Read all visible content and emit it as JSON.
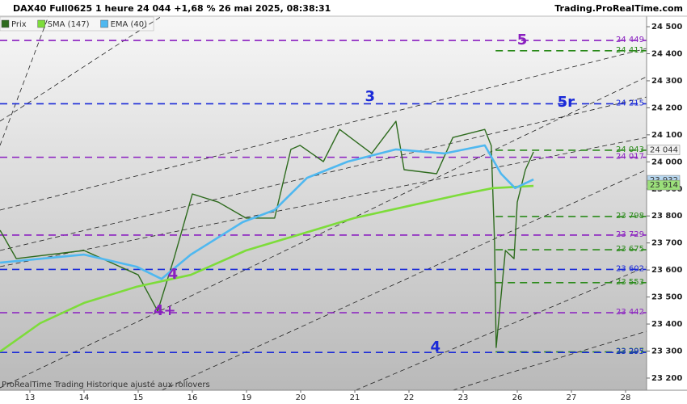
{
  "chart_data": {
    "type": "line",
    "title": "DAX40 Full0625 1 heure 24 044 +1,68 % 26 mai 2025, 08:38:31",
    "source": "Trading.ProRealTime.com",
    "footer": "ProRealTime Trading  Historique ajusté aux rollovers",
    "xlim": [
      -0.552,
      11.388
    ],
    "xticks": [
      {
        "value": 0,
        "label": "13"
      },
      {
        "value": 1,
        "label": "14"
      },
      {
        "value": 2,
        "label": "15"
      },
      {
        "value": 3,
        "label": "16"
      },
      {
        "value": 4,
        "label": "19"
      },
      {
        "value": 5,
        "label": "20"
      },
      {
        "value": 6,
        "label": "21"
      },
      {
        "value": 7,
        "label": "22"
      },
      {
        "value": 8,
        "label": "23"
      },
      {
        "value": 9,
        "label": "26"
      },
      {
        "value": 10,
        "label": "27"
      },
      {
        "value": 11,
        "label": "28"
      }
    ],
    "ylim": [
      23155,
      24539
    ],
    "yticks": [
      {
        "value": 23200,
        "label": "23 200"
      },
      {
        "value": 23300,
        "label": "23 300"
      },
      {
        "value": 23400,
        "label": "23 400"
      },
      {
        "value": 23500,
        "label": "23 500"
      },
      {
        "value": 23600,
        "label": "23 600"
      },
      {
        "value": 23700,
        "label": "23 700"
      },
      {
        "value": 23800,
        "label": "23 800"
      },
      {
        "value": 23900,
        "label": "23 900"
      },
      {
        "value": 24000,
        "label": "24 000"
      },
      {
        "value": 24100,
        "label": "24 100"
      },
      {
        "value": 24200,
        "label": "24 200"
      },
      {
        "value": 24300,
        "label": "24 300"
      },
      {
        "value": 24400,
        "label": "24 400"
      },
      {
        "value": 24500,
        "label": "24 500"
      }
    ],
    "series": [
      {
        "name": "Prix",
        "color": "#2e6b1e",
        "x": [
          -0.55,
          -0.25,
          1,
          2,
          2.36,
          2.66,
          3,
          3.48,
          3.99,
          4.52,
          4.82,
          4.99,
          5.42,
          5.72,
          6.31,
          6.76,
          6.91,
          7.51,
          7.81,
          8.4,
          8.52,
          8.58,
          8.61,
          8.78,
          8.94,
          9.0,
          9.15,
          9.3
        ],
        "values": [
          23747,
          23642,
          23672,
          23582,
          23448,
          23642,
          23881,
          23851,
          23792,
          23792,
          24046,
          24061,
          24001,
          24120,
          24031,
          24150,
          23971,
          23956,
          24090,
          24120,
          24060,
          23702,
          23313,
          23672,
          23642,
          23851,
          23971,
          24037
        ]
      },
      {
        "name": "SMA (147)",
        "color": "#7ddc3a",
        "x": [
          -0.55,
          0.19,
          1,
          1.97,
          2.97,
          3.99,
          4.99,
          5.99,
          7,
          8,
          8.55,
          9.3
        ],
        "values": [
          23298,
          23403,
          23478,
          23538,
          23582,
          23672,
          23732,
          23792,
          23837,
          23881,
          23903,
          23911
        ]
      },
      {
        "name": "EMA (40)",
        "color": "#4fb8f0",
        "x": [
          -0.55,
          1,
          1.97,
          2.43,
          2.97,
          3.93,
          4.52,
          5.12,
          5.87,
          6.76,
          7.66,
          8.4,
          8.7,
          8.96,
          9.3
        ],
        "values": [
          23627,
          23657,
          23612,
          23567,
          23657,
          23777,
          23822,
          23941,
          24001,
          24046,
          24031,
          24061,
          23956,
          23903,
          23935
        ]
      }
    ],
    "levels": [
      {
        "value": 24449,
        "label": "24 449",
        "color": "#8a1fc0"
      },
      {
        "value": 24411,
        "label": "24 411",
        "color": "#2a8a1a",
        "from": 8.6
      },
      {
        "value": 24215,
        "label": "24 215",
        "color": "#1a2ad8"
      },
      {
        "value": 24043,
        "label": "24 043",
        "color": "#2a8a1a",
        "from": 8.6
      },
      {
        "value": 24017,
        "label": "24 017",
        "color": "#8a1fc0"
      },
      {
        "value": 23798,
        "label": "23 798",
        "color": "#2a8a1a",
        "from": 8.6
      },
      {
        "value": 23729,
        "label": "23 729",
        "color": "#8a1fc0"
      },
      {
        "value": 23675,
        "label": "23 675",
        "color": "#2a8a1a",
        "from": 8.6
      },
      {
        "value": 23602,
        "label": "23 602",
        "color": "#1a2ad8"
      },
      {
        "value": 23553,
        "label": "23 553",
        "color": "#2a8a1a",
        "from": 8.6
      },
      {
        "value": 23442,
        "label": "23 442",
        "color": "#8a1fc0"
      },
      {
        "value": 23297,
        "label": "23 297",
        "color": "#2a8a1a",
        "from": 8.6
      },
      {
        "value": 23295,
        "label": "23 295",
        "color": "#1a2ad8"
      }
    ],
    "annotations": [
      {
        "text": "5",
        "x": 9.09,
        "y": 24449,
        "color": "#8a1fc0"
      },
      {
        "text": "3",
        "x": 6.28,
        "y": 24240,
        "color": "#1a2ad8"
      },
      {
        "text": "5r",
        "x": 9.9,
        "y": 24219,
        "color": "#1a2ad8"
      },
      {
        "text": "4",
        "x": 2.64,
        "y": 23582,
        "color": "#8a1fc0"
      },
      {
        "text": "4+",
        "x": 2.49,
        "y": 23448,
        "color": "#8a1fc0"
      },
      {
        "text": "4",
        "x": 7.49,
        "y": 23313,
        "color": "#1a2ad8"
      }
    ],
    "tags": [
      {
        "value": 24044,
        "label": "24 044",
        "color": "#f2f2f2"
      },
      {
        "value": 23932,
        "label": "23 932",
        "color": "#b8d8f0"
      },
      {
        "value": 23914,
        "label": "23 914",
        "color": "#9be07a"
      }
    ]
  }
}
